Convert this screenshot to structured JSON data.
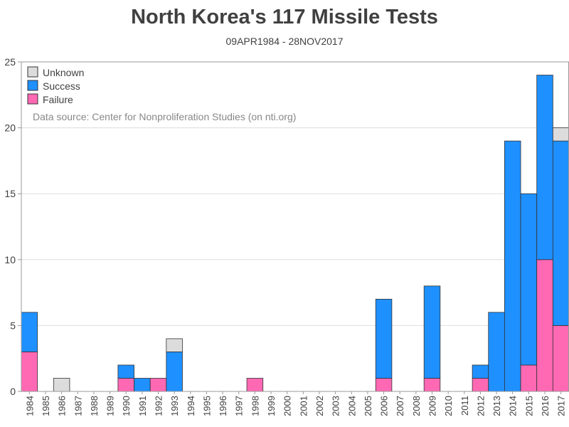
{
  "colors": {
    "unknown": "#dcdcdc",
    "success": "#1e90ff",
    "failure": "#ff69b4",
    "edge": "#333333",
    "grid": "#dddddd",
    "frame": "#999999",
    "text": "#404040",
    "source_text": "#888888"
  },
  "chart_data": {
    "type": "bar",
    "stacked": true,
    "title": "North Korea's 117 Missile Tests",
    "subtitle": "09APR1984 - 28NOV2017",
    "source_note": "Data source: Center for Nonproliferation Studies (on nti.org)",
    "xlabel": "",
    "ylabel": "",
    "ylim": [
      0,
      25
    ],
    "yticks": [
      0,
      5,
      10,
      15,
      20,
      25
    ],
    "grid": true,
    "legend_position": "top-left",
    "categories": [
      "1984",
      "1985",
      "1986",
      "1987",
      "1988",
      "1989",
      "1990",
      "1991",
      "1992",
      "1993",
      "1994",
      "1995",
      "1996",
      "1997",
      "1998",
      "1999",
      "2000",
      "2001",
      "2002",
      "2003",
      "2004",
      "2005",
      "2006",
      "2007",
      "2008",
      "2009",
      "2010",
      "2011",
      "2012",
      "2013",
      "2014",
      "2015",
      "2016",
      "2017"
    ],
    "series": [
      {
        "name": "Failure",
        "key": "failure",
        "values": [
          3,
          0,
          0,
          0,
          0,
          0,
          1,
          0,
          1,
          0,
          0,
          0,
          0,
          0,
          1,
          0,
          0,
          0,
          0,
          0,
          0,
          0,
          1,
          0,
          0,
          1,
          0,
          0,
          1,
          0,
          0,
          2,
          10,
          5
        ]
      },
      {
        "name": "Success",
        "key": "success",
        "values": [
          3,
          0,
          0,
          0,
          0,
          0,
          1,
          1,
          0,
          3,
          0,
          0,
          0,
          0,
          0,
          0,
          0,
          0,
          0,
          0,
          0,
          0,
          6,
          0,
          0,
          7,
          0,
          0,
          1,
          6,
          19,
          13,
          14,
          14
        ]
      },
      {
        "name": "Unknown",
        "key": "unknown",
        "values": [
          0,
          0,
          1,
          0,
          0,
          0,
          0,
          0,
          0,
          1,
          0,
          0,
          0,
          0,
          0,
          0,
          0,
          0,
          0,
          0,
          0,
          0,
          0,
          0,
          0,
          0,
          0,
          0,
          0,
          0,
          0,
          0,
          0,
          1
        ]
      }
    ],
    "legend_order": [
      "Unknown",
      "Success",
      "Failure"
    ]
  }
}
